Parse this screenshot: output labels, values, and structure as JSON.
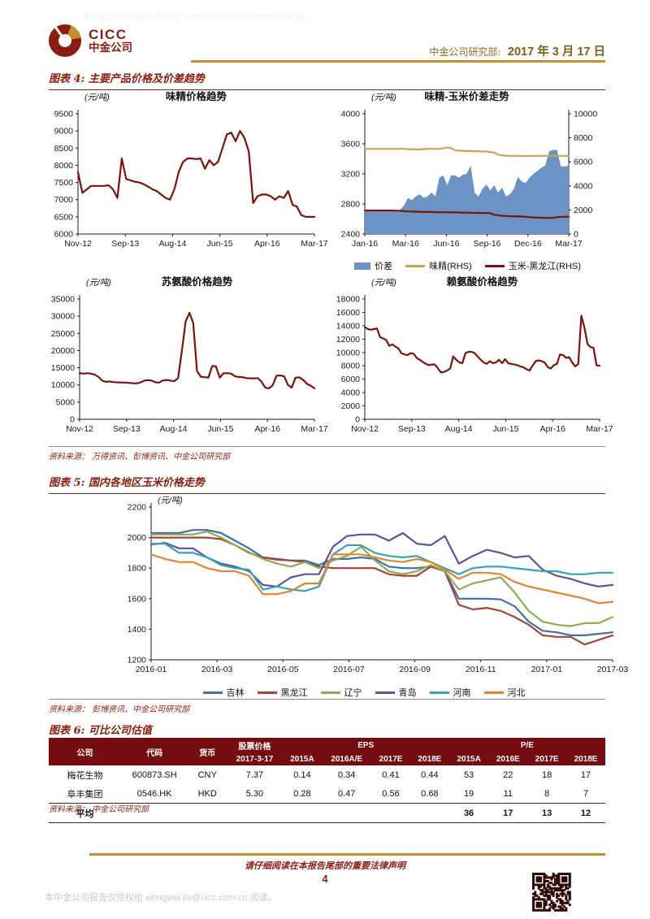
{
  "page": {
    "watermark_top": "本中金公司报告仅授权给 xiongwei.jia@cicc.com.cn 阅读。",
    "colors": {
      "dark_red": "#8C1B10",
      "gold": "#C0912C",
      "maroon_line": "#7E120D",
      "table_header_bg": "#750D10"
    }
  },
  "header": {
    "logo_text_en": "CICC",
    "logo_text_cn": "中金公司",
    "dept_label": "中金公司研究部:",
    "date": "2017 年 3 月 17 日"
  },
  "figure4": {
    "title": "图表 4:  主要产品价格及价差趋势",
    "source": "资料来源： 万得资讯、彭博资讯、中金公司研究部"
  },
  "figure5": {
    "title": "图表 5:  国内各地区玉米价格走势",
    "source": "资料来源： 彭博资讯、中金公司研究部"
  },
  "figure6": {
    "title": "图表 6:  可比公司估值",
    "source": "资料来源： 中金公司研究部",
    "table": {
      "header": {
        "company": "公司",
        "code": "代码",
        "currency": "货币",
        "price_label": "股票价格",
        "price_date": "2017-3-17",
        "eps_label": "EPS",
        "pe_label": "P/E",
        "eps_cols": [
          "2015A",
          "2016A/E",
          "2017E",
          "2018E"
        ],
        "pe_cols": [
          "2015A",
          "2016E",
          "2017E",
          "2018E"
        ]
      },
      "rows": [
        {
          "company": "梅花生物",
          "code": "600873.SH",
          "currency": "CNY",
          "price": "7.37",
          "eps": [
            "0.14",
            "0.34",
            "0.41",
            "0.44"
          ],
          "pe": [
            "53",
            "22",
            "18",
            "17"
          ]
        },
        {
          "company": "阜丰集团",
          "code": "0546.HK",
          "currency": "HKD",
          "price": "5.30",
          "eps": [
            "0.28",
            "0.47",
            "0.56",
            "0.68"
          ],
          "pe": [
            "19",
            "11",
            "8",
            "7"
          ]
        }
      ],
      "avg_row": {
        "label": "平均",
        "pe": [
          "36",
          "17",
          "13",
          "12"
        ]
      }
    }
  },
  "footer": {
    "legal_notice": "请仔细阅读在本报告尾部的重要法律声明",
    "page_number": "4",
    "watermark": "本中金公司报告仅授权给 xiongwei.jia@cicc.com.cn 阅读。"
  },
  "chart_data": [
    {
      "type": "line",
      "title": "味精价格趋势",
      "unit": "(元/吨)",
      "ylim": [
        6000,
        9500
      ],
      "ystep": 500,
      "x_ticks": [
        "Nov-12",
        "Sep-13",
        "Aug-14",
        "Jun-15",
        "Apr-16",
        "Mar-17"
      ],
      "series": [
        {
          "name": "味精",
          "color": "#7E120D",
          "type": "line",
          "values": [
            7800,
            7200,
            7300,
            7400,
            7400,
            7400,
            7400,
            7420,
            7300,
            7050,
            8200,
            7600,
            7560,
            7520,
            7500,
            7450,
            7380,
            7300,
            7250,
            7150,
            7050,
            7000,
            7300,
            7800,
            8100,
            8200,
            8200,
            8180,
            8200,
            7900,
            8150,
            8000,
            8100,
            8500,
            8900,
            8950,
            8700,
            9000,
            8800,
            8400,
            6900,
            7100,
            7150,
            7150,
            7100,
            7000,
            7100,
            7050,
            7250,
            6850,
            6800,
            6550,
            6500,
            6500,
            6500
          ]
        }
      ]
    },
    {
      "type": "combo",
      "title": "味精-玉米价差走势",
      "unit": "(元/吨)",
      "ylim": [
        2400,
        4000
      ],
      "ystep": 400,
      "y2lim": [
        0,
        10000
      ],
      "y2step": 2000,
      "x_ticks": [
        "Jan-16",
        "Mar-16",
        "Jun-16",
        "Sep-16",
        "Dec-16",
        "Mar-17"
      ],
      "legend": true,
      "series": [
        {
          "name": "价差",
          "color": "#6B94C4",
          "type": "area",
          "axis": "left",
          "values": [
            2700,
            2700,
            2700,
            2700,
            2700,
            2700,
            2700,
            2700,
            2700,
            2720,
            2780,
            2880,
            2850,
            2900,
            2930,
            2880,
            2900,
            2950,
            2900,
            3150,
            3180,
            3050,
            3180,
            3180,
            3150,
            3190,
            3200,
            3310,
            2950,
            2900,
            3000,
            3060,
            2980,
            3050,
            2950,
            3020,
            2900,
            2930,
            3000,
            3160,
            3100,
            3080,
            3150,
            3200,
            3240,
            3280,
            3310,
            3500,
            3520,
            3520,
            3300,
            3300,
            3310
          ]
        },
        {
          "name": "味精(RHS)",
          "color": "#D2A155",
          "type": "line",
          "axis": "right",
          "values": [
            7080,
            7080,
            7080,
            7080,
            7080,
            7080,
            7080,
            7080,
            7080,
            7080,
            7080,
            7060,
            7040,
            7040,
            7030,
            7060,
            7080,
            7080,
            7080,
            7080,
            7120,
            7200,
            7150,
            6950,
            6930,
            6920,
            6900,
            6900,
            6880,
            6900,
            6850,
            6880,
            6800,
            6780,
            6600,
            6550,
            6500,
            6500,
            6500,
            6500,
            6500,
            6480,
            6500,
            6500,
            6500,
            6500,
            6500,
            6500,
            6500,
            6500,
            6500,
            6500,
            6500
          ]
        },
        {
          "name": "玉米-黑龙江(RHS)",
          "color": "#7E120D",
          "type": "line",
          "axis": "right",
          "values": [
            1950,
            1950,
            1950,
            1950,
            1950,
            1950,
            1950,
            1950,
            1940,
            1930,
            1900,
            1880,
            1870,
            1860,
            1850,
            1840,
            1830,
            1830,
            1820,
            1810,
            1820,
            1810,
            1800,
            1800,
            1790,
            1780,
            1780,
            1770,
            1760,
            1750,
            1750,
            1740,
            1730,
            1600,
            1560,
            1520,
            1500,
            1480,
            1470,
            1460,
            1450,
            1430,
            1400,
            1380,
            1360,
            1350,
            1340,
            1340,
            1350,
            1400,
            1430,
            1440,
            1440
          ]
        }
      ]
    },
    {
      "type": "line",
      "title": "苏氨酸价格趋势",
      "unit": "(元/吨)",
      "ylim": [
        0,
        35000
      ],
      "ystep": 5000,
      "x_ticks": [
        "Nov-12",
        "Sep-13",
        "Aug-14",
        "Jun-15",
        "Apr-16",
        "Mar-17"
      ],
      "series": [
        {
          "name": "苏氨酸",
          "color": "#7E120D",
          "type": "line",
          "values": [
            13400,
            13300,
            13400,
            13300,
            13000,
            12300,
            11200,
            10900,
            11000,
            10800,
            10750,
            10700,
            10700,
            10600,
            10500,
            10450,
            10700,
            11200,
            11400,
            11250,
            10750,
            10700,
            11300,
            11450,
            11250,
            11100,
            12000,
            20000,
            28500,
            31000,
            28000,
            14000,
            12400,
            12250,
            12150,
            15500,
            15400,
            12100,
            13400,
            13400,
            13300,
            12500,
            12300,
            12250,
            12000,
            11950,
            11900,
            12000,
            11000,
            9200,
            9000,
            9900,
            12700,
            12750,
            12500,
            10000,
            9200,
            12100,
            12200,
            11500,
            10300,
            9800,
            9000
          ]
        }
      ]
    },
    {
      "type": "line",
      "title": "赖氨酸价格趋势",
      "unit": "(元/吨)",
      "ylim": [
        0,
        18000
      ],
      "ystep": 2000,
      "x_ticks": [
        "Nov-12",
        "Sep-13",
        "Aug-14",
        "Jun-15",
        "Apr-16",
        "Mar-17"
      ],
      "series": [
        {
          "name": "赖氨酸",
          "color": "#7E120D",
          "type": "line",
          "values": [
            13800,
            13500,
            13400,
            13500,
            13600,
            12300,
            12100,
            11900,
            11000,
            11200,
            10900,
            10600,
            9900,
            9700,
            9600,
            9900,
            9800,
            9200,
            8900,
            8600,
            8300,
            8100,
            8200,
            8200,
            7600,
            7000,
            7100,
            7300,
            7600,
            9400,
            8900,
            8500,
            8400,
            9900,
            10100,
            10100,
            9900,
            9400,
            8900,
            8500,
            8300,
            8700,
            8400,
            8500,
            8900,
            8400,
            9000,
            8400,
            8300,
            8200,
            8100,
            7900,
            7800,
            7500,
            7300,
            8000,
            8700,
            8800,
            8700,
            8500,
            7800,
            7600,
            8100,
            8300,
            9700,
            9600,
            9200,
            9300,
            8500,
            7900,
            8300,
            15500,
            13800,
            11300,
            10800,
            10700,
            8100,
            8000
          ]
        }
      ]
    },
    {
      "type": "line",
      "title": "",
      "unit": "(元/吨)",
      "ylim": [
        1200,
        2200
      ],
      "ystep": 200,
      "x_ticks": [
        "2016-01",
        "2016-03",
        "2016-05",
        "2016-07",
        "2016-09",
        "2016-11",
        "2017-01",
        "2017-03"
      ],
      "legend": true,
      "series": [
        {
          "name": "吉林",
          "color": "#3E6FB0",
          "type": "line",
          "values": [
            2030,
            2030,
            2030,
            2050,
            2050,
            2030,
            1980,
            1930,
            1870,
            1860,
            1850,
            1850,
            1820,
            1860,
            1860,
            1870,
            1860,
            1810,
            1800,
            1800,
            1810,
            1780,
            1600,
            1600,
            1600,
            1595,
            1550,
            1450,
            1390,
            1380,
            1360,
            1360,
            1370,
            1380
          ]
        },
        {
          "name": "黑龙江",
          "color": "#A8423A",
          "type": "line",
          "values": [
            2000,
            2000,
            2000,
            2000,
            2000,
            1990,
            1950,
            1900,
            1870,
            1855,
            1850,
            1840,
            1810,
            1800,
            1800,
            1800,
            1800,
            1760,
            1750,
            1750,
            1810,
            1780,
            1560,
            1530,
            1540,
            1520,
            1480,
            1430,
            1360,
            1350,
            1350,
            1300,
            1330,
            1360
          ]
        },
        {
          "name": "辽宁",
          "color": "#8CAE4C",
          "type": "line",
          "values": [
            2020,
            2020,
            2020,
            2020,
            2040,
            2000,
            1950,
            1905,
            1860,
            1830,
            1810,
            1840,
            1800,
            1850,
            1880,
            1940,
            1850,
            1780,
            1760,
            1780,
            1820,
            1780,
            1660,
            1700,
            1720,
            1740,
            1640,
            1520,
            1450,
            1430,
            1420,
            1440,
            1440,
            1480
          ]
        },
        {
          "name": "青岛",
          "color": "#5F519B",
          "type": "line",
          "values": [
            1955,
            1965,
            1930,
            1930,
            1870,
            1830,
            1810,
            1780,
            1690,
            1680,
            1740,
            1760,
            1760,
            1940,
            2010,
            2020,
            2020,
            1980,
            2030,
            1960,
            1950,
            2010,
            1830,
            1880,
            1920,
            1900,
            1870,
            1880,
            1790,
            1750,
            1730,
            1700,
            1680,
            1690
          ]
        },
        {
          "name": "河南",
          "color": "#35A3B9",
          "type": "line",
          "values": [
            1960,
            1960,
            1900,
            1900,
            1870,
            1820,
            1800,
            1790,
            1660,
            1680,
            1660,
            1650,
            1680,
            1890,
            1950,
            1950,
            1900,
            1880,
            1870,
            1880,
            1840,
            1800,
            1760,
            1800,
            1810,
            1810,
            1800,
            1790,
            1780,
            1780,
            1760,
            1760,
            1770,
            1770
          ]
        },
        {
          "name": "河北",
          "color": "#E2862E",
          "type": "line",
          "values": [
            1890,
            1860,
            1840,
            1840,
            1800,
            1780,
            1780,
            1750,
            1630,
            1630,
            1650,
            1700,
            1700,
            1890,
            1890,
            1890,
            1870,
            1850,
            1840,
            1860,
            1840,
            1790,
            1730,
            1770,
            1770,
            1760,
            1710,
            1680,
            1660,
            1640,
            1620,
            1600,
            1570,
            1580
          ]
        }
      ]
    }
  ]
}
